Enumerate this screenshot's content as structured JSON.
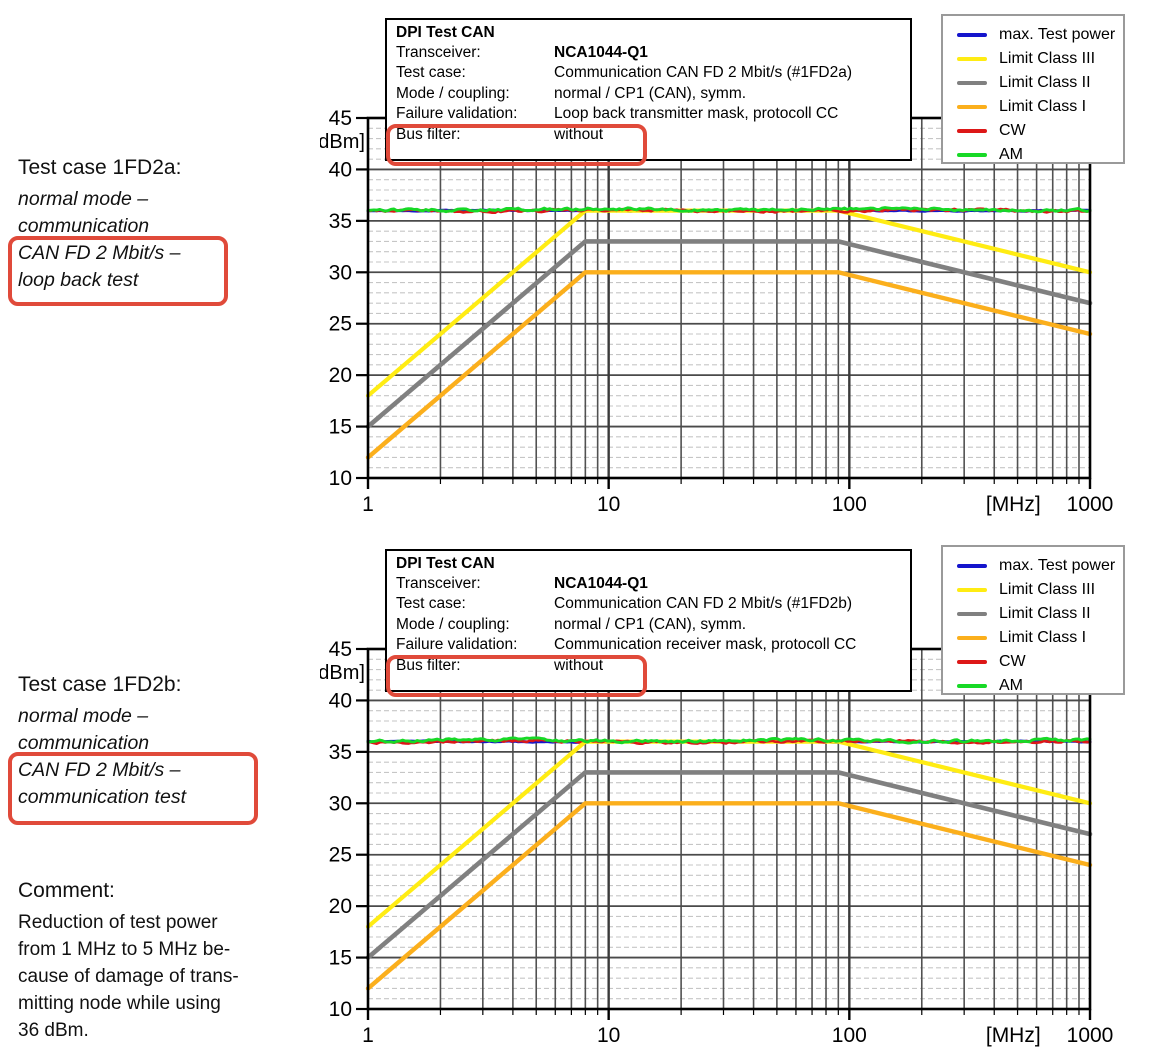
{
  "colors": {
    "annotation_red": "#e04a3a",
    "grid_major": "#4a4a4a",
    "grid_minor_v": "#515151",
    "grid_decade_v": "#3a3a3a",
    "grid_minor_h": "#c6c6c6",
    "axis": "#000000",
    "legend_border": "#9a9a9a"
  },
  "left_column": {
    "test_case_a": {
      "title": "Test case 1FD2a:",
      "italic_lines": [
        "normal mode –",
        "communication"
      ],
      "boxed_lines": [
        "CAN FD 2 Mbit/s –",
        "loop back test"
      ]
    },
    "test_case_b": {
      "title": "Test case 1FD2b:",
      "italic_lines": [
        "normal mode –",
        "communication"
      ],
      "boxed_lines": [
        "CAN FD 2 Mbit/s –",
        "communication test"
      ]
    },
    "comment": {
      "title": "Comment:",
      "lines": [
        "Reduction of test power",
        "from 1 MHz to 5 MHz be-",
        "cause of damage of trans-",
        "mitting node while using",
        "36 dBm."
      ]
    }
  },
  "charts": [
    {
      "info_box": {
        "title": "DPI Test CAN",
        "rows": [
          {
            "label": "Transceiver:",
            "value": "NCA1044-Q1",
            "bold_value": true
          },
          {
            "label": "Test case:",
            "value": "Communication CAN FD 2 Mbit/s (#1FD2a)"
          },
          {
            "label": "Mode / coupling:",
            "value": "normal / CP1 (CAN), symm."
          },
          {
            "label": "Failure validation:",
            "value": "Loop back transmitter mask, protocoll CC"
          },
          {
            "label": "Bus filter:",
            "value": "without",
            "highlighted": true
          }
        ]
      },
      "legend": [
        {
          "label": "max. Test power",
          "color": "#1515cc"
        },
        {
          "label": "Limit Class III",
          "color": "#ffec13"
        },
        {
          "label": "Limit Class II",
          "color": "#808080"
        },
        {
          "label": "Limit Class I",
          "color": "#fbaf1c"
        },
        {
          "label": "CW",
          "color": "#dd1717"
        },
        {
          "label": "AM",
          "color": "#17d926"
        }
      ]
    },
    {
      "info_box": {
        "title": "DPI Test CAN",
        "rows": [
          {
            "label": "Transceiver:",
            "value": "NCA1044-Q1",
            "bold_value": true
          },
          {
            "label": "Test case:",
            "value": "Communication CAN FD 2 Mbit/s (#1FD2b)"
          },
          {
            "label": "Mode / coupling:",
            "value": "normal / CP1 (CAN), symm."
          },
          {
            "label": "Failure validation:",
            "value": "Communication receiver mask, protocoll CC"
          },
          {
            "label": "Bus filter:",
            "value": "without",
            "highlighted": true
          }
        ]
      },
      "legend": [
        {
          "label": "max. Test power",
          "color": "#1515cc"
        },
        {
          "label": "Limit Class III",
          "color": "#ffec13"
        },
        {
          "label": "Limit Class II",
          "color": "#808080"
        },
        {
          "label": "Limit Class I",
          "color": "#fbaf1c"
        },
        {
          "label": "CW",
          "color": "#dd1717"
        },
        {
          "label": "AM",
          "color": "#17d926"
        }
      ]
    }
  ],
  "chart_data": [
    {
      "type": "line",
      "title": "DPI Test CAN – Test case #1FD2a",
      "x_scale": "log",
      "xlabel": "[MHz]",
      "ylabel": "[dBm]",
      "x_range": [
        1,
        1000
      ],
      "y_range": [
        10,
        45
      ],
      "x_ticks": [
        1,
        10,
        100,
        1000
      ],
      "y_ticks": [
        10,
        15,
        20,
        25,
        30,
        35,
        40,
        45
      ],
      "grid": "major 5 dBm / decade, minor 1 dBm dashed / log subdivisions",
      "legend_position": "top-right",
      "series": [
        {
          "name": "max. Test power",
          "color": "#1515cc",
          "width": 3.0,
          "noise": 0.05,
          "points": [
            [
              1,
              36
            ],
            [
              1000,
              36
            ]
          ]
        },
        {
          "name": "Limit Class III",
          "color": "#ffec13",
          "width": 4.2,
          "points": [
            [
              1,
              18
            ],
            [
              8,
              36
            ],
            [
              90,
              36
            ],
            [
              1000,
              30
            ]
          ]
        },
        {
          "name": "Limit Class II",
          "color": "#808080",
          "width": 4.6,
          "points": [
            [
              1,
              15
            ],
            [
              8,
              33
            ],
            [
              90,
              33
            ],
            [
              1000,
              27
            ]
          ]
        },
        {
          "name": "Limit Class I",
          "color": "#fbaf1c",
          "width": 4.4,
          "points": [
            [
              1,
              12
            ],
            [
              8,
              30
            ],
            [
              90,
              30
            ],
            [
              1000,
              24
            ]
          ]
        },
        {
          "name": "CW",
          "color": "#dd1717",
          "width": 2.6,
          "noise": 0.14,
          "points": [
            [
              1,
              36
            ],
            [
              1000,
              36
            ]
          ]
        },
        {
          "name": "AM",
          "color": "#17d926",
          "width": 2.9,
          "noise": 0.15,
          "points": [
            [
              1,
              36.1
            ],
            [
              1000,
              36.1
            ]
          ]
        }
      ]
    },
    {
      "type": "line",
      "title": "DPI Test CAN – Test case #1FD2b",
      "x_scale": "log",
      "xlabel": "[MHz]",
      "ylabel": "[dBm]",
      "x_range": [
        1,
        1000
      ],
      "y_range": [
        10,
        45
      ],
      "x_ticks": [
        1,
        10,
        100,
        1000
      ],
      "y_ticks": [
        10,
        15,
        20,
        25,
        30,
        35,
        40,
        45
      ],
      "grid": "major 5 dBm / decade, minor 1 dBm dashed / log subdivisions",
      "legend_position": "top-right",
      "series": [
        {
          "name": "max. Test power",
          "color": "#1515cc",
          "width": 3.0,
          "noise": 0.05,
          "points": [
            [
              1,
              36
            ],
            [
              1000,
              36
            ]
          ]
        },
        {
          "name": "Limit Class III",
          "color": "#ffec13",
          "width": 4.2,
          "points": [
            [
              1,
              18
            ],
            [
              8,
              36
            ],
            [
              90,
              36
            ],
            [
              1000,
              30
            ]
          ]
        },
        {
          "name": "Limit Class II",
          "color": "#808080",
          "width": 4.6,
          "points": [
            [
              1,
              15
            ],
            [
              8,
              33
            ],
            [
              90,
              33
            ],
            [
              1000,
              27
            ]
          ]
        },
        {
          "name": "Limit Class I",
          "color": "#fbaf1c",
          "width": 4.4,
          "points": [
            [
              1,
              12
            ],
            [
              8,
              30
            ],
            [
              90,
              30
            ],
            [
              1000,
              24
            ]
          ]
        },
        {
          "name": "CW",
          "color": "#dd1717",
          "width": 2.6,
          "noise": 0.14,
          "points": [
            [
              1,
              36
            ],
            [
              1000,
              36
            ]
          ]
        },
        {
          "name": "AM",
          "color": "#17d926",
          "width": 2.9,
          "noise": 0.15,
          "points": [
            [
              1,
              36.1
            ],
            [
              1000,
              36.1
            ]
          ]
        }
      ]
    }
  ]
}
